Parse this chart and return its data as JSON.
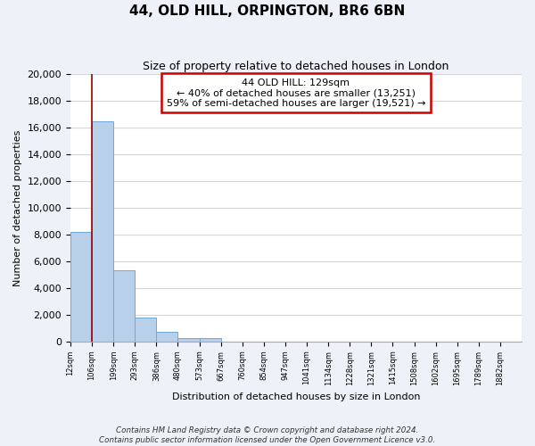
{
  "title": "44, OLD HILL, ORPINGTON, BR6 6BN",
  "subtitle": "Size of property relative to detached houses in London",
  "xlabel": "Distribution of detached houses by size in London",
  "ylabel": "Number of detached properties",
  "categories": [
    "12sqm",
    "106sqm",
    "199sqm",
    "293sqm",
    "386sqm",
    "480sqm",
    "573sqm",
    "667sqm",
    "760sqm",
    "854sqm",
    "947sqm",
    "1041sqm",
    "1134sqm",
    "1228sqm",
    "1321sqm",
    "1415sqm",
    "1508sqm",
    "1602sqm",
    "1695sqm",
    "1789sqm",
    "1882sqm"
  ],
  "bar_values": [
    8200,
    16500,
    5300,
    1800,
    750,
    280,
    280,
    0,
    0,
    0,
    0,
    0,
    0,
    0,
    0,
    0,
    0,
    0,
    0,
    0,
    0
  ],
  "bar_color": "#b8d0ea",
  "bar_edge_color": "#6fa8d6",
  "annotation_line1": "44 OLD HILL: 129sqm",
  "annotation_line2": "← 40% of detached houses are smaller (13,251)",
  "annotation_line3": "59% of semi-detached houses are larger (19,521) →",
  "redline_x": 1.0,
  "ylim": [
    0,
    20000
  ],
  "yticks": [
    0,
    2000,
    4000,
    6000,
    8000,
    10000,
    12000,
    14000,
    16000,
    18000,
    20000
  ],
  "footer_line1": "Contains HM Land Registry data © Crown copyright and database right 2024.",
  "footer_line2": "Contains public sector information licensed under the Open Government Licence v3.0.",
  "background_color": "#eef2f8",
  "plot_bg_color": "#ffffff",
  "grid_color": "#c8d8ec"
}
